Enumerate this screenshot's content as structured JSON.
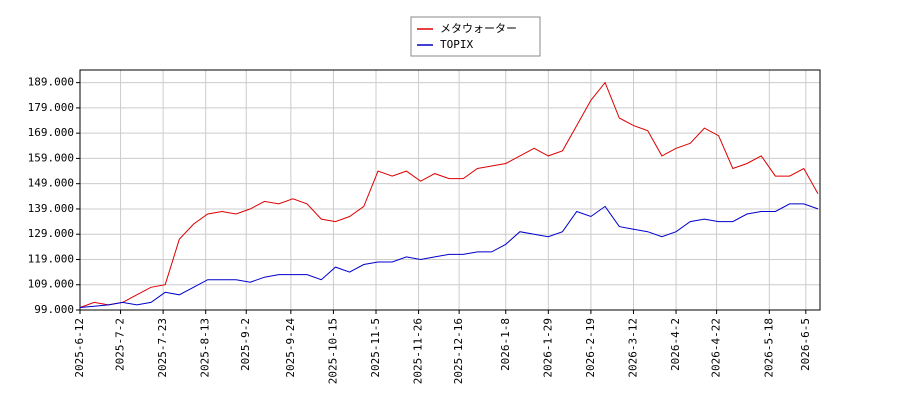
{
  "chart_data": {
    "type": "line",
    "x": [
      "2025-6-12",
      "2025-6-19",
      "2025-6-26",
      "2025-7-3",
      "2025-7-10",
      "2025-7-17",
      "2025-7-24",
      "2025-7-31",
      "2025-8-7",
      "2025-8-14",
      "2025-8-21",
      "2025-8-28",
      "2025-9-4",
      "2025-9-11",
      "2025-9-18",
      "2025-9-25",
      "2025-10-2",
      "2025-10-9",
      "2025-10-16",
      "2025-10-23",
      "2025-10-30",
      "2025-11-6",
      "2025-11-13",
      "2025-11-20",
      "2025-11-27",
      "2025-12-4",
      "2025-12-11",
      "2025-12-18",
      "2025-12-25",
      "2026-1-1",
      "2026-1-8",
      "2026-1-15",
      "2026-1-22",
      "2026-1-29",
      "2026-2-5",
      "2026-2-12",
      "2026-2-19",
      "2026-2-26",
      "2026-3-5",
      "2026-3-12",
      "2026-3-19",
      "2026-3-26",
      "2026-4-2",
      "2026-4-9",
      "2026-4-16",
      "2026-4-23",
      "2026-4-30",
      "2026-5-7",
      "2026-5-14",
      "2026-5-21",
      "2026-5-28",
      "2026-6-4",
      "2026-6-11"
    ],
    "series": [
      {
        "name": "メタウォーター",
        "color": "#dd0000",
        "values": [
          100,
          102,
          101,
          102,
          105,
          108,
          109,
          127,
          133,
          137,
          138,
          137,
          139,
          142,
          141,
          143,
          141,
          135,
          134,
          136,
          140,
          154,
          152,
          154,
          150,
          153,
          151,
          151,
          155,
          156,
          157,
          160,
          163,
          160,
          162,
          172,
          182,
          189,
          175,
          172,
          170,
          160,
          163,
          165,
          171,
          168,
          155,
          157,
          160,
          152,
          152,
          155,
          145
        ]
      },
      {
        "name": "TOPIX",
        "color": "#0000cc",
        "values": [
          100,
          100.5,
          101,
          102,
          101,
          102,
          106,
          105,
          108,
          111,
          111,
          111,
          110,
          112,
          113,
          113,
          113,
          111,
          116,
          114,
          117,
          118,
          118,
          120,
          119,
          120,
          121,
          121,
          122,
          122,
          125,
          130,
          129,
          128,
          130,
          138,
          136,
          140,
          132,
          131,
          130,
          128,
          130,
          134,
          135,
          134,
          134,
          137,
          138,
          138,
          141,
          141,
          139
        ]
      }
    ],
    "xlim": [
      "2025-6-12",
      "2026-6-12"
    ],
    "xticks": [
      "2025-6-12",
      "2025-7-2",
      "2025-7-23",
      "2025-8-13",
      "2025-9-2",
      "2025-9-24",
      "2025-10-15",
      "2025-11-5",
      "2025-11-26",
      "2025-12-16",
      "2026-1-8",
      "2026-1-29",
      "2026-2-19",
      "2026-3-12",
      "2026-4-2",
      "2026-4-22",
      "2026-5-18",
      "2026-6-5"
    ],
    "ylim": [
      99,
      194
    ],
    "yticks": [
      {
        "value": 99,
        "label": "99.000"
      },
      {
        "value": 109,
        "label": "109.000"
      },
      {
        "value": 119,
        "label": "119.000"
      },
      {
        "value": 129,
        "label": "129.000"
      },
      {
        "value": 139,
        "label": "139.000"
      },
      {
        "value": 149,
        "label": "149.000"
      },
      {
        "value": 159,
        "label": "159.000"
      },
      {
        "value": 169,
        "label": "169.000"
      },
      {
        "value": 179,
        "label": "179.000"
      },
      {
        "value": 189,
        "label": "189.000"
      }
    ],
    "grid": true,
    "legend": "top"
  }
}
